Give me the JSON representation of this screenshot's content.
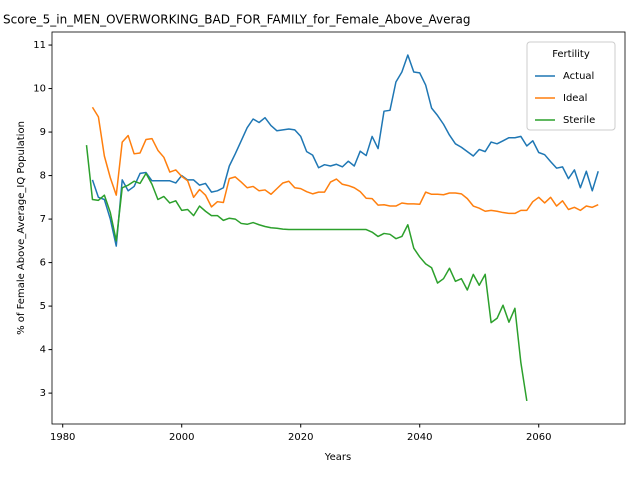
{
  "chart_data": {
    "type": "line",
    "title": "Score_5_in_MEN_OVERWORKING_BAD_FOR_FAMILY_for_Female_Above_Averag",
    "x_label": "Years",
    "y_label": "% of Female Above_Average_IQ Population",
    "legend_title": "Fertility",
    "legend": "upper right",
    "grid": false,
    "x": [
      1984,
      1985,
      1986,
      1987,
      1988,
      1989,
      1990,
      1991,
      1992,
      1993,
      1994,
      1995,
      1996,
      1997,
      1998,
      1999,
      2000,
      2001,
      2002,
      2003,
      2004,
      2005,
      2006,
      2007,
      2008,
      2009,
      2010,
      2011,
      2012,
      2013,
      2014,
      2015,
      2016,
      2017,
      2018,
      2019,
      2020,
      2021,
      2022,
      2023,
      2024,
      2025,
      2026,
      2027,
      2028,
      2029,
      2030,
      2031,
      2032,
      2033,
      2034,
      2035,
      2036,
      2037,
      2038,
      2039,
      2040,
      2041,
      2042,
      2043,
      2044,
      2045,
      2046,
      2047,
      2048,
      2049,
      2050,
      2051,
      2052,
      2053,
      2054,
      2055,
      2056,
      2057,
      2058,
      2059,
      2060,
      2061,
      2062,
      2063,
      2064,
      2065,
      2066,
      2067,
      2068,
      2069,
      2070
    ],
    "series": [
      {
        "name": "Actual",
        "color": "#1f77b4",
        "values": [
          null,
          7.9,
          7.5,
          7.45,
          7.0,
          6.38,
          7.9,
          7.65,
          7.75,
          8.05,
          8.07,
          7.88,
          7.88,
          7.88,
          7.88,
          7.83,
          8.0,
          7.9,
          7.9,
          7.78,
          7.82,
          7.62,
          7.65,
          7.72,
          8.22,
          8.5,
          8.8,
          9.1,
          9.3,
          9.22,
          9.33,
          9.15,
          9.03,
          9.05,
          9.07,
          9.05,
          8.9,
          8.55,
          8.47,
          8.18,
          8.25,
          8.22,
          8.26,
          8.2,
          8.33,
          8.22,
          8.56,
          8.46,
          8.9,
          8.62,
          9.48,
          9.5,
          10.15,
          10.38,
          10.77,
          10.38,
          10.36,
          10.08,
          9.55,
          9.38,
          9.18,
          8.93,
          8.73,
          8.65,
          8.55,
          8.45,
          8.6,
          8.55,
          8.77,
          8.73,
          8.8,
          8.87,
          8.87,
          8.9,
          8.68,
          8.8,
          8.53,
          8.48,
          8.32,
          8.17,
          8.2,
          7.93,
          8.13,
          7.72,
          8.1,
          7.65,
          8.1
        ]
      },
      {
        "name": "Ideal",
        "color": "#ff7f0e",
        "values": [
          null,
          9.57,
          9.35,
          8.45,
          7.95,
          7.55,
          8.77,
          8.92,
          8.5,
          8.52,
          8.83,
          8.85,
          8.58,
          8.42,
          8.08,
          8.13,
          7.98,
          7.88,
          7.5,
          7.68,
          7.55,
          7.28,
          7.4,
          7.38,
          7.93,
          7.97,
          7.85,
          7.72,
          7.75,
          7.65,
          7.67,
          7.57,
          7.7,
          7.83,
          7.87,
          7.72,
          7.7,
          7.63,
          7.58,
          7.62,
          7.62,
          7.85,
          7.92,
          7.8,
          7.77,
          7.72,
          7.63,
          7.48,
          7.47,
          7.32,
          7.33,
          7.3,
          7.3,
          7.37,
          7.35,
          7.35,
          7.34,
          7.62,
          7.57,
          7.57,
          7.56,
          7.6,
          7.6,
          7.58,
          7.47,
          7.3,
          7.25,
          7.18,
          7.2,
          7.18,
          7.15,
          7.13,
          7.13,
          7.2,
          7.2,
          7.4,
          7.5,
          7.37,
          7.5,
          7.3,
          7.42,
          7.22,
          7.27,
          7.2,
          7.3,
          7.27,
          7.33
        ]
      },
      {
        "name": "Sterile",
        "color": "#2ca02c",
        "values": [
          8.7,
          7.45,
          7.43,
          7.55,
          7.15,
          6.5,
          7.72,
          7.78,
          7.87,
          7.82,
          8.05,
          7.8,
          7.45,
          7.52,
          7.37,
          7.42,
          7.2,
          7.22,
          7.08,
          7.3,
          7.18,
          7.08,
          7.08,
          6.97,
          7.02,
          7.0,
          6.9,
          6.88,
          6.92,
          6.87,
          6.83,
          6.8,
          6.79,
          6.77,
          6.76,
          6.76,
          6.76,
          6.76,
          6.76,
          6.76,
          6.76,
          6.76,
          6.76,
          6.76,
          6.76,
          6.76,
          6.76,
          6.76,
          6.7,
          6.6,
          6.67,
          6.65,
          6.55,
          6.6,
          6.87,
          6.33,
          6.13,
          5.97,
          5.88,
          5.53,
          5.63,
          5.87,
          5.57,
          5.63,
          5.37,
          5.73,
          5.48,
          5.73,
          4.62,
          4.72,
          5.02,
          4.63,
          4.95,
          3.7,
          2.82,
          null,
          null,
          null,
          null,
          null,
          null,
          null,
          null,
          null,
          null,
          null,
          null
        ]
      }
    ],
    "xlim": [
      1978.2,
      2074.5
    ],
    "ylim": [
      2.29,
      11.3
    ],
    "xticks": [
      1980,
      2000,
      2020,
      2040,
      2060
    ],
    "yticks": [
      3,
      4,
      5,
      6,
      7,
      8,
      9,
      10,
      11
    ]
  }
}
